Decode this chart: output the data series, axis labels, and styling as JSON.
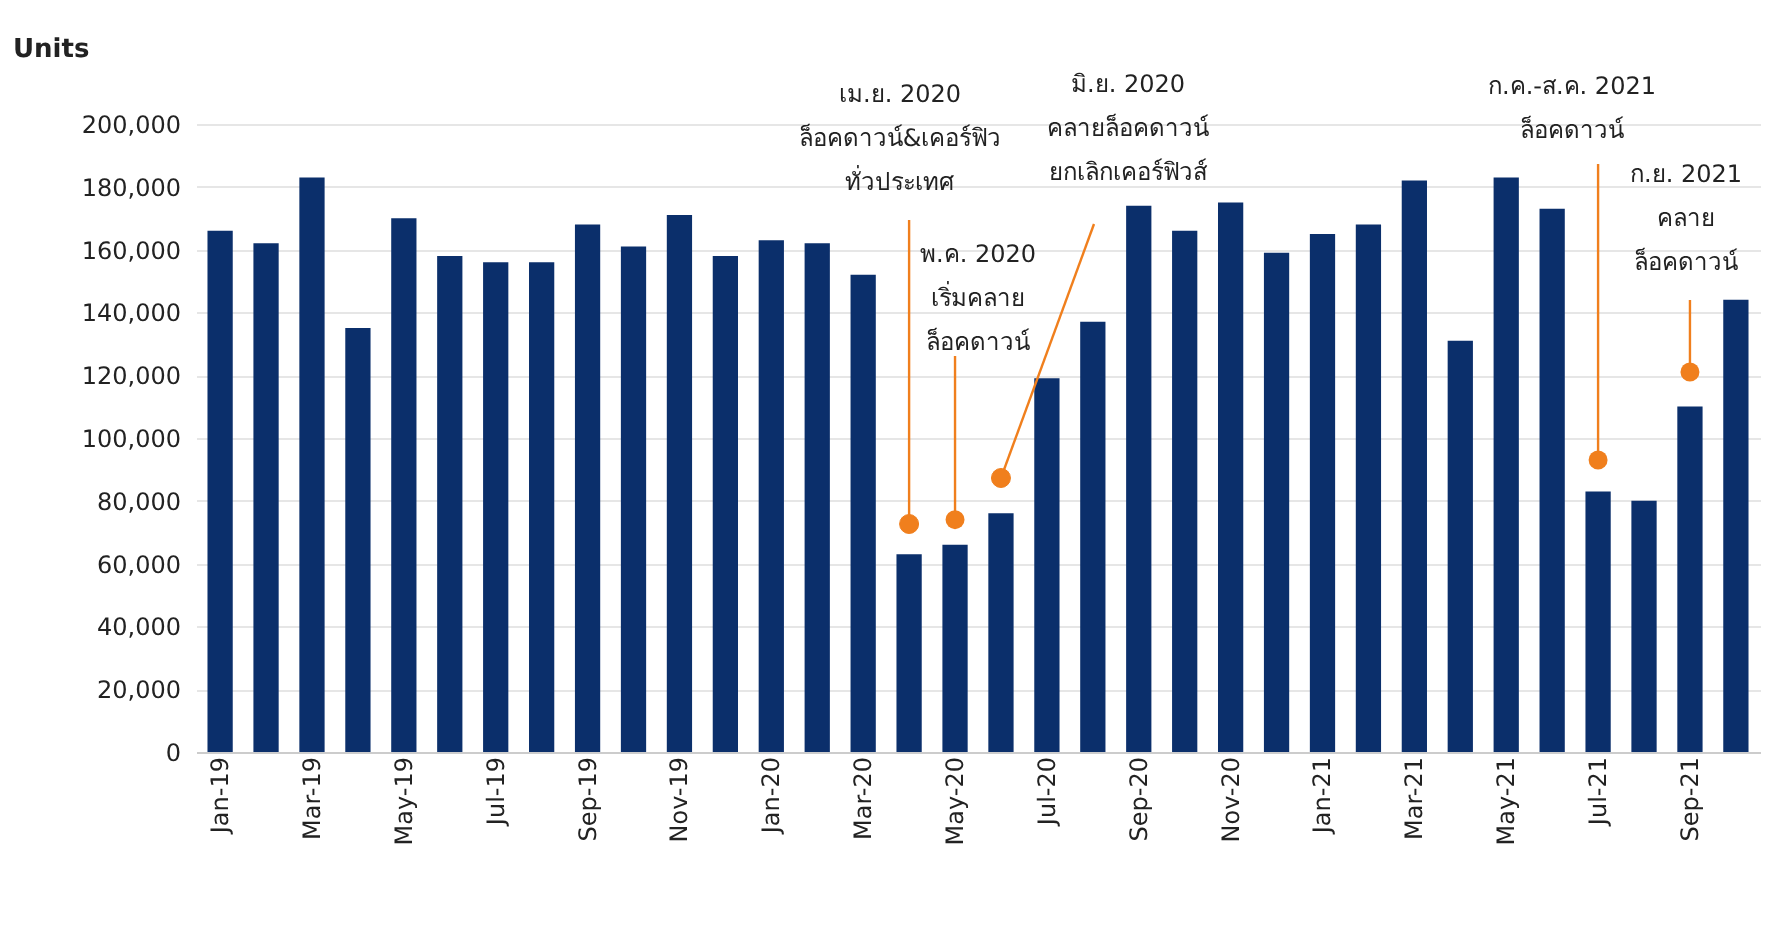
{
  "chart_data": {
    "type": "bar",
    "ylabel": "Units",
    "categories": [
      "Jan-19",
      null,
      "Mar-19",
      null,
      "May-19",
      null,
      "Jul-19",
      null,
      "Sep-19",
      null,
      "Nov-19",
      null,
      "Jan-20",
      null,
      "Mar-20",
      null,
      "May-20",
      null,
      "Jul-20",
      null,
      "Sep-20",
      null,
      "Nov-20",
      null,
      "Jan-21",
      null,
      "Mar-21",
      null,
      "May-21",
      null,
      "Jul-21",
      null,
      "Sep-21",
      null
    ],
    "values": [
      166000,
      162000,
      183000,
      135000,
      170000,
      158000,
      156000,
      156000,
      168000,
      161000,
      171000,
      158000,
      163000,
      162000,
      152000,
      63000,
      66000,
      76000,
      119000,
      137000,
      174000,
      166000,
      175000,
      159000,
      165000,
      168000,
      182000,
      131000,
      183000,
      173000,
      83000,
      80000,
      110000,
      144000
    ],
    "color": "#0b2f6b",
    "ylim": [
      0,
      200000
    ],
    "yticks": [
      0,
      {
        "value": 20000,
        "label": "20,000"
      },
      {
        "value": 40000,
        "label": "40,000"
      },
      {
        "value": 60000,
        "label": "60,000"
      },
      {
        "value": 80000,
        "label": "80,000"
      },
      {
        "value": 100000,
        "label": "100,000"
      },
      {
        "value": 120000,
        "label": "120,000"
      },
      {
        "value": 140000,
        "label": "140,000"
      },
      {
        "value": 160000,
        "label": "160,000"
      },
      {
        "value": 180000,
        "label": "180,000"
      },
      {
        "value": 200000,
        "label": "200,000"
      }
    ],
    "grid": "y",
    "annotations": [
      "เม.ย. 2020\nล็อคดาวน์&เคอร์ฟิว\nทั่วประเทศ",
      {
        "text": "พ.ค. 2020\nเริ่มคลาย\nล็อคดาวน์",
        "x": "May-20",
        "y": 74000
      },
      "มิ.ย. 2020\nคลายล็อคดาวน์\nยกเลิกเคอร์ฟิวส์",
      {
        "text": "ก.ค.-ส.ค. 2021\nล็อคดาวน์",
        "x": "Jul-21",
        "y": 93000
      },
      {
        "text": "ก.ย. 2021\nคลาย\nล็อคดาวน์",
        "x": "Sep-21",
        "y": 121000
      }
    ]
  }
}
